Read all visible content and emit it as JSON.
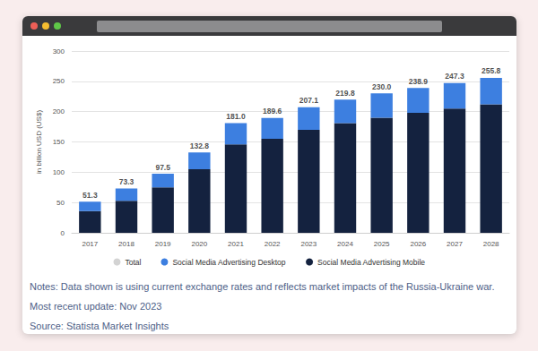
{
  "chart_data": {
    "type": "bar",
    "y_label": "in billion USD (US$)",
    "categories": [
      "2017",
      "2018",
      "2019",
      "2020",
      "2021",
      "2022",
      "2023",
      "2024",
      "2025",
      "2026",
      "2027",
      "2028"
    ],
    "series": [
      {
        "name": "Total",
        "color": "#c8c8c8",
        "type": "scatter",
        "data_labels": true,
        "values": [
          51.3,
          73.3,
          97.5,
          132.8,
          181.0,
          189.6,
          207.1,
          219.8,
          230.0,
          238.9,
          247.3,
          255.8
        ],
        "value_labels": [
          "51.3",
          "73.3",
          "97.5",
          "132.8",
          "181.0",
          "189.6",
          "207.1",
          "219.8",
          "230.0",
          "238.9",
          "247.3",
          "255.8"
        ]
      },
      {
        "name": "Social Media Advertising Desktop",
        "color": "#3d7fe0",
        "type": "bar",
        "values": [
          15.3,
          20.3,
          22.5,
          27.8,
          35.0,
          34.6,
          37.1,
          38.8,
          40.0,
          40.9,
          42.3,
          43.8
        ]
      },
      {
        "name": "Social Media Advertising Mobile",
        "color": "#14223f",
        "type": "bar",
        "values": [
          36,
          53,
          75,
          105,
          146,
          155,
          170,
          181,
          190,
          198,
          205,
          212
        ]
      }
    ],
    "stacked": true,
    "ylim": [
      0,
      300
    ],
    "yticks": [
      0,
      50,
      100,
      150,
      200,
      250,
      300
    ],
    "grid": true,
    "legend": "bottom"
  },
  "notes": [
    "Notes: Data shown is using current exchange rates and reflects market impacts of the Russia-Ukraine war.",
    "Most recent update: Nov 2023",
    "Source: Statista Market Insights"
  ]
}
